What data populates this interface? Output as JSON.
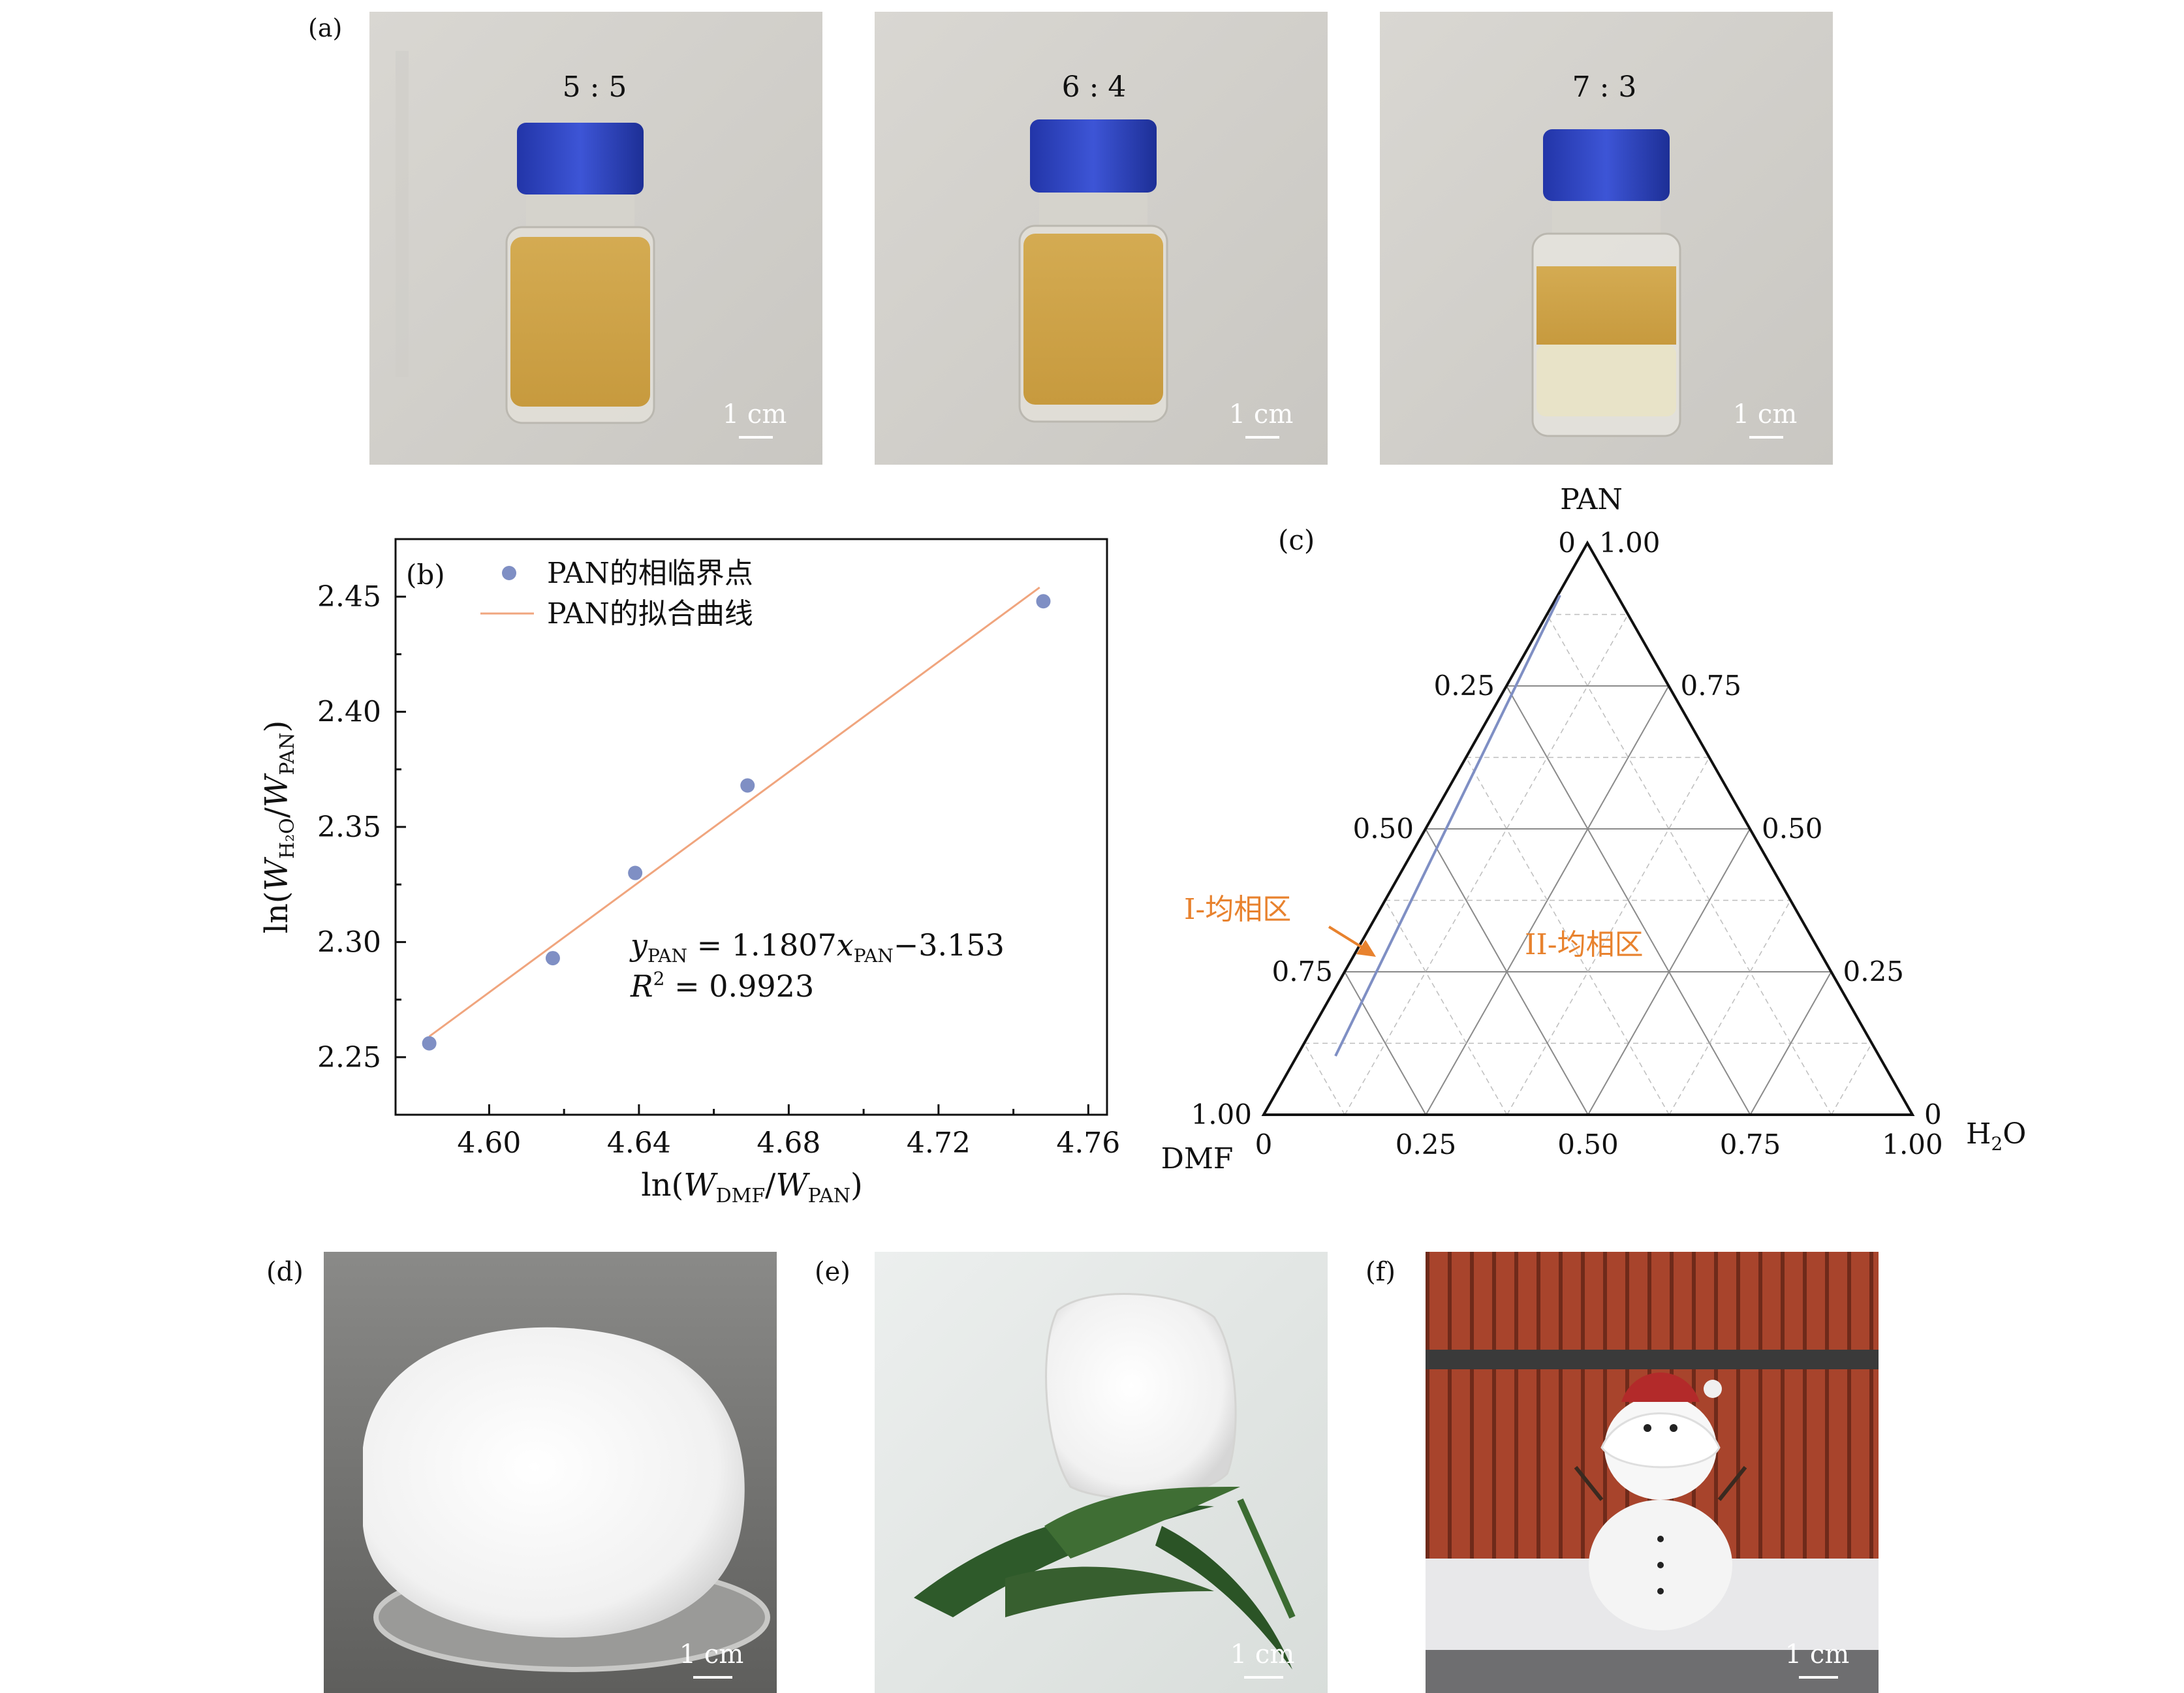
{
  "panels": {
    "a": {
      "tag": "(a)",
      "photos": [
        {
          "ratio": "5 : 5",
          "scale": "1 cm",
          "icon": "bottle-homogeneous"
        },
        {
          "ratio": "6 : 4",
          "scale": "1 cm",
          "icon": "bottle-homogeneous"
        },
        {
          "ratio": "7 : 3",
          "scale": "1 cm",
          "icon": "bottle-phase-separated"
        }
      ]
    },
    "b": {
      "tag": "(b)"
    },
    "c": {
      "tag": "(c)",
      "vertex_top": "PAN",
      "vertex_left": "DMF",
      "vertex_right_main": "H",
      "vertex_right_sub": "2",
      "vertex_right_tail": "O",
      "region1": "I-均相区",
      "region2": "II-均相区",
      "left_ticks": [
        "0",
        "0.25",
        "0.50",
        "0.75",
        "1.00"
      ],
      "right_ticks": [
        "1.00",
        "0.75",
        "0.50",
        "0.25",
        "0"
      ],
      "bottom_ticks": [
        "0",
        "0.25",
        "0.50",
        "0.75",
        "1.00"
      ],
      "colors": {
        "boundary": "#7f8fc4",
        "annotation": "#e8822e"
      }
    },
    "d": {
      "tag": "(d)",
      "scale": "1 cm",
      "icon": "fluffy-sponge-photo"
    },
    "e": {
      "tag": "(e)",
      "scale": "1 cm",
      "icon": "sponge-on-leaf-photo"
    },
    "f": {
      "tag": "(f)",
      "scale": "1 cm",
      "icon": "snowman-photo"
    }
  },
  "chart_data": {
    "type": "scatter",
    "series": [
      {
        "name": "PAN的相临界点",
        "kind": "scatter",
        "color": "#7f8fc4",
        "x": [
          4.584,
          4.617,
          4.639,
          4.669,
          4.748
        ],
        "y": [
          2.256,
          2.293,
          2.33,
          2.368,
          2.448
        ]
      },
      {
        "name": "PAN的拟合曲线",
        "kind": "line",
        "color": "#f0a57e",
        "x": [
          4.584,
          4.747
        ],
        "y": [
          2.259,
          2.454
        ]
      }
    ],
    "equation": {
      "lhs": "y",
      "lhs_sub": "PAN",
      "mid": " = 1.1807",
      "x": "x",
      "x_sub": "PAN",
      "tail": "−3.153",
      "r2_label": "R",
      "r2_sup": "2",
      "r2_value": " = 0.9923"
    },
    "xlabel": {
      "pre": "ln(",
      "w1": "W",
      "w1_sub": "DMF",
      "slash": "/",
      "w2": "W",
      "w2_sub": "PAN",
      "post": ")"
    },
    "ylabel": {
      "pre": "ln(",
      "w1": "W",
      "w1_sub": "H₂O",
      "slash": "/",
      "w2": "W",
      "w2_sub": "PAN",
      "post": ")"
    },
    "xticks": [
      "4.60",
      "4.64",
      "4.68",
      "4.72",
      "4.76"
    ],
    "yticks": [
      "2.25",
      "2.30",
      "2.35",
      "2.40",
      "2.45"
    ],
    "xlim": [
      4.575,
      4.765
    ],
    "ylim": [
      2.225,
      2.475
    ],
    "grid": false,
    "legend_position": "top-left"
  }
}
